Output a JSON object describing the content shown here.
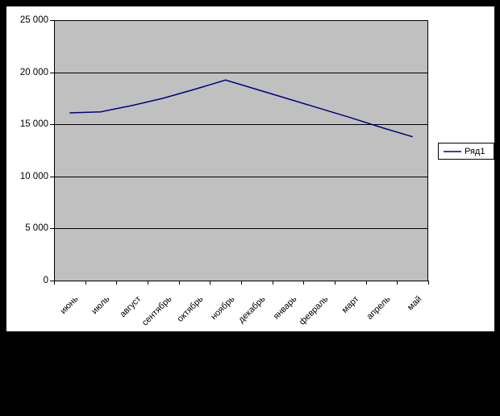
{
  "frame": {
    "border_color": "#000000",
    "canvas_color": "#ffffff"
  },
  "chart_data": {
    "type": "line",
    "title": "",
    "xlabel": "",
    "ylabel": "",
    "categories": [
      "июнь",
      "июль",
      "август",
      "сентябрь",
      "октябрь",
      "ноябрь",
      "декабрь",
      "январь",
      "февраль",
      "март",
      "апрель",
      "май"
    ],
    "series": [
      {
        "name": "Ряд1",
        "color": "#000080",
        "values": [
          16100,
          16200,
          16800,
          17500,
          18350,
          19250,
          18350,
          17450,
          16550,
          15650,
          14700,
          13800
        ]
      }
    ],
    "ylim": [
      0,
      25000
    ],
    "ytick_interval": 5000,
    "ytick_labels": [
      "0",
      "5 000",
      "10 000",
      "15 000",
      "20 000",
      "25 000"
    ],
    "grid": true,
    "gridline_color": "#000000",
    "plot_bg": "#c0c0c0",
    "axis_color": "#000000",
    "legend_position": "right",
    "x_label_rotation_deg": 45
  },
  "legend": {
    "items": [
      {
        "label": "Ряд1",
        "color": "#000080"
      }
    ]
  }
}
